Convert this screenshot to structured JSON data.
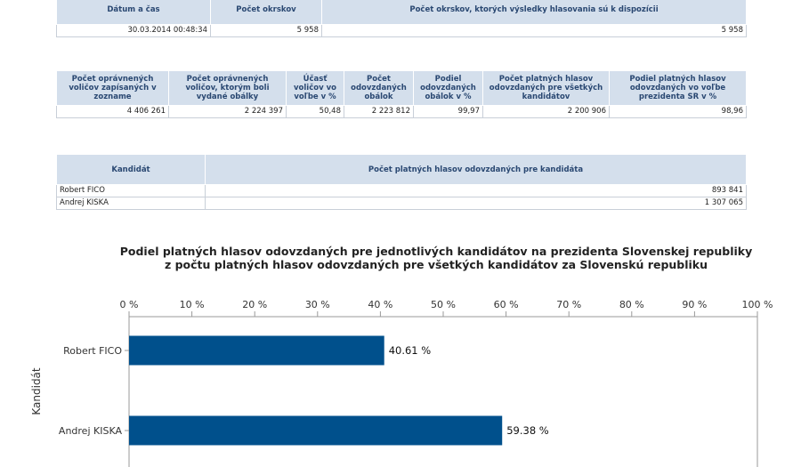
{
  "summary": {
    "headers": [
      "Dátum a čas",
      "Počet okrskov",
      "Počet okrskov, ktorých výsledky hlasovania sú k dispozícii"
    ],
    "row": [
      "30.03.2014 00:48:34",
      "5 958",
      "5 958"
    ]
  },
  "turnout": {
    "headers": [
      "Počet oprávnených voličov zapísaných v zozname",
      "Počet oprávnených voličov, ktorým boli vydané obálky",
      "Účasť voličov vo voľbe v %",
      "Počet odovzdaných obálok",
      "Podiel odovzdaných obálok v %",
      "Počet platných hlasov odovzdaných pre všetkých kandidátov",
      "Podiel platných hlasov odovzdaných vo voľbe prezidenta SR v %"
    ],
    "row": [
      "4 406 261",
      "2 224 397",
      "50,48",
      "2 223 812",
      "99,97",
      "2 200 906",
      "98,96"
    ]
  },
  "candidates_table": {
    "headers": [
      "Kandidát",
      "Počet platných hlasov odovzdaných pre kandidáta"
    ],
    "rows": [
      [
        "Robert FICO",
        "893 841"
      ],
      [
        "Andrej KISKA",
        "1 307 065"
      ]
    ]
  },
  "chart_data": {
    "type": "bar",
    "orientation": "horizontal",
    "title_line1": "Podiel platných hlasov odovzdaných pre jednotlivých kandidátov na prezidenta Slovenskej republiky",
    "title_line2": "z počtu platných hlasov odovzdaných pre všetkých kandidátov za Slovenskú republiku",
    "categories": [
      "Robert FICO",
      "Andrej KISKA"
    ],
    "values": [
      40.61,
      59.38
    ],
    "value_labels": [
      "40.61 %",
      "59.38 %"
    ],
    "ylabel": "Kandidát",
    "xlim": [
      0,
      100
    ],
    "ticks": [
      0,
      10,
      20,
      30,
      40,
      50,
      60,
      70,
      80,
      90,
      100
    ],
    "tick_labels": [
      "0 %",
      "10 %",
      "20 %",
      "30 %",
      "40 %",
      "50 %",
      "60 %",
      "70 %",
      "80 %",
      "90 %",
      "100 %"
    ],
    "tick_position": "top",
    "grid": false,
    "bar_color": "#00508c"
  }
}
